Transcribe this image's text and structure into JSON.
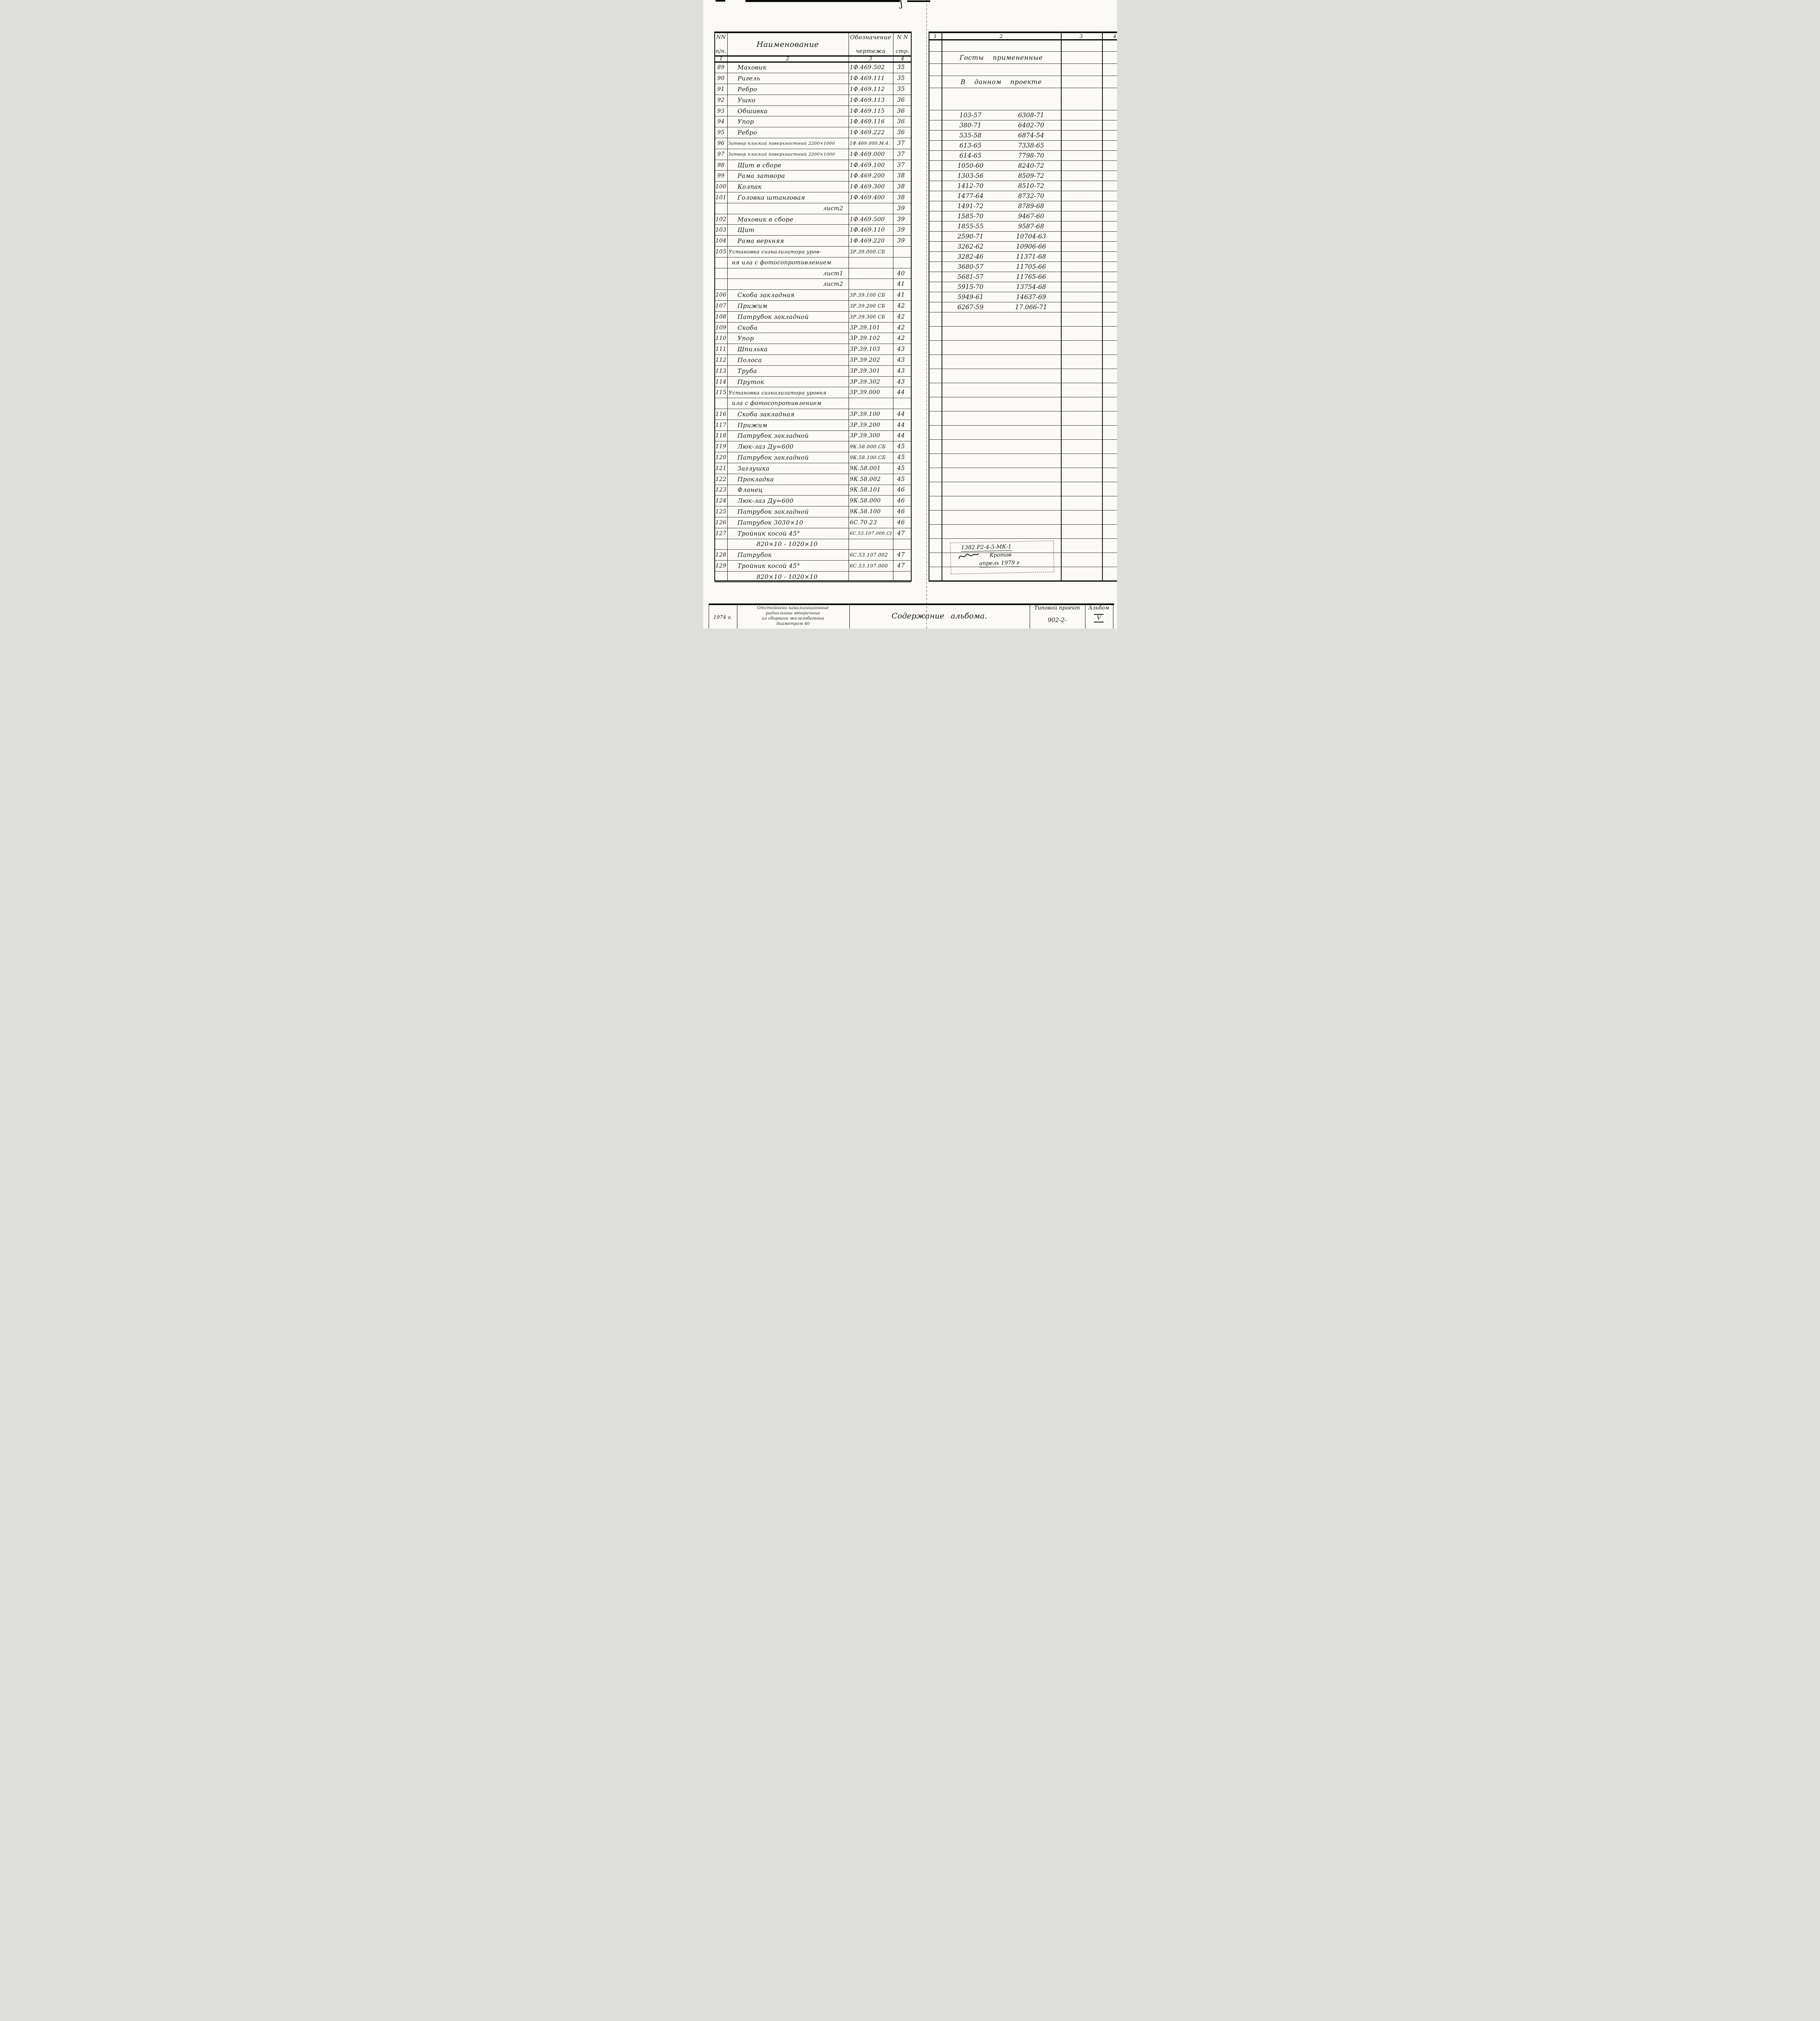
{
  "colors": {
    "ink": "#161616",
    "paper": "#fbfaf6"
  },
  "left_table": {
    "header": {
      "col1_top": "NN",
      "col1_bottom": "п/п.",
      "col2": "Наименование",
      "col3_top": "Обозначение",
      "col3_bottom": "чертежа",
      "col4_top": "N N",
      "col4_bottom": "стр."
    },
    "subheader": [
      "1",
      "2",
      "3",
      "4"
    ],
    "rows": [
      {
        "n": "89",
        "name": "Маховик",
        "code": "1Ф.469.502",
        "page": "35"
      },
      {
        "n": "90",
        "name": "Ригель",
        "code": "1Ф.469.111",
        "page": "35"
      },
      {
        "n": "91",
        "name": "Ребро",
        "code": "1Ф.469.112",
        "page": "35"
      },
      {
        "n": "92",
        "name": "Ушко",
        "code": "1Ф.469.113",
        "page": "36"
      },
      {
        "n": "93",
        "name": "Обшивка",
        "code": "1Ф.469.115",
        "page": "36"
      },
      {
        "n": "94",
        "name": "Упор",
        "code": "1Ф.469.116",
        "page": "36"
      },
      {
        "n": "95",
        "name": "Ребро",
        "code": "1Ф.469.222",
        "page": "36"
      },
      {
        "n": "96",
        "name": "Затвор плоский поверхностный 2200×1000",
        "code": "1Ф.469.000.М.4.",
        "page": "37"
      },
      {
        "n": "97",
        "name": "Затвор плоский поверхностный 2200×1000",
        "code": "1Ф.469.000",
        "page": "37"
      },
      {
        "n": "98",
        "name": "Щит в сборе",
        "code": "1Ф.469.100",
        "page": "37"
      },
      {
        "n": "99",
        "name": "Рама затвора",
        "code": "1Ф.469.200",
        "page": "38"
      },
      {
        "n": "100",
        "name": "Колпак",
        "code": "1Ф.469.300",
        "page": "38"
      },
      {
        "n": "101",
        "name": "Головка штанговая",
        "code": "1Ф.469.400",
        "page": "38"
      },
      {
        "n": "",
        "name": "лист2",
        "code": "",
        "page": "39",
        "type": "sheet"
      },
      {
        "n": "102",
        "name": "Маховик в сборе",
        "code": "1Ф.469.500",
        "page": "39"
      },
      {
        "n": "103",
        "name": "Щит",
        "code": "1Ф.469.110",
        "page": "39"
      },
      {
        "n": "104",
        "name": "Рама верхняя",
        "code": "1Ф.469.220",
        "page": "39"
      },
      {
        "n": "105",
        "name": "Установка сигнализатора уров-",
        "code": "3Р.39.000.СБ",
        "page": ""
      },
      {
        "n": "",
        "name": "ня ила с фотосопротивлением",
        "code": "",
        "page": "",
        "type": "cont"
      },
      {
        "n": "",
        "name": "лист1",
        "code": "",
        "page": "40",
        "type": "sheet"
      },
      {
        "n": "",
        "name": "лист2",
        "code": "",
        "page": "41",
        "type": "sheet"
      },
      {
        "n": "106",
        "name": "Скоба закладная",
        "code": "3Р.39.100 СБ",
        "page": "41"
      },
      {
        "n": "107",
        "name": "Прижим",
        "code": "3Р.39.200 СБ",
        "page": "42"
      },
      {
        "n": "108",
        "name": "Патрубок закладной",
        "code": "3Р.39.300 СБ",
        "page": "42"
      },
      {
        "n": "109",
        "name": "Скоба",
        "code": "3Р.39.101",
        "page": "42"
      },
      {
        "n": "110",
        "name": "Упор",
        "code": "3Р.39.102",
        "page": "42"
      },
      {
        "n": "111",
        "name": "Шпилька",
        "code": "3Р.39.103",
        "page": "43"
      },
      {
        "n": "112",
        "name": "Полоса",
        "code": "3Р.39.202",
        "page": "43"
      },
      {
        "n": "113",
        "name": "Труба",
        "code": "3Р.39.301",
        "page": "43"
      },
      {
        "n": "114",
        "name": "Пруток",
        "code": "3Р.39.302",
        "page": "43"
      },
      {
        "n": "115",
        "name": "Установка сигнализатора уровня",
        "code": "3Р.39.000",
        "page": "44"
      },
      {
        "n": "",
        "name": "ила с фотосопротивлением",
        "code": "",
        "page": "",
        "type": "cont"
      },
      {
        "n": "116",
        "name": "Скоба закладная",
        "code": "3Р.39.100",
        "page": "44"
      },
      {
        "n": "117",
        "name": "Прижим",
        "code": "3Р.39.200",
        "page": "44"
      },
      {
        "n": "118",
        "name": "Патрубок закладной",
        "code": "3Р.39.300",
        "page": "44"
      },
      {
        "n": "119",
        "name": "Люк-лаз Ду=600",
        "code": "9К.58.000.СБ",
        "page": "45"
      },
      {
        "n": "120",
        "name": "Патрубок закладной",
        "code": "9К.58.100.СБ",
        "page": "45"
      },
      {
        "n": "121",
        "name": "Заглушка",
        "code": "9К.58.001",
        "page": "45"
      },
      {
        "n": "122",
        "name": "Прокладка",
        "code": "9К.58.002",
        "page": "45"
      },
      {
        "n": "123",
        "name": "Фланец",
        "code": "9К.58.101",
        "page": "46"
      },
      {
        "n": "124",
        "name": "Люк-лаз Ду=600",
        "code": "9К.58.000",
        "page": "46"
      },
      {
        "n": "125",
        "name": "Патрубок закладной",
        "code": "9К.58.100",
        "page": "46"
      },
      {
        "n": "126",
        "name": "Патрубок 3030×10",
        "code": "6С.70.23",
        "page": "46"
      },
      {
        "n": "127",
        "name": "Тройник косой 45°",
        "code": "6С.53.107.000.СБ",
        "page": "47"
      },
      {
        "n": "",
        "name": "820×10 - 1020×10",
        "code": "",
        "page": "",
        "type": "center"
      },
      {
        "n": "128",
        "name": "Патрубок",
        "code": "6С.53.107.002",
        "page": "47"
      },
      {
        "n": "129",
        "name": "Тройник косой 45°",
        "code": "6С.53.107.000",
        "page": "47"
      },
      {
        "n": "",
        "name": "820×10 - 1020×10",
        "code": "",
        "page": "",
        "type": "center"
      }
    ]
  },
  "right_table": {
    "col_numbers": [
      "1",
      "2",
      "3",
      "4"
    ],
    "pre_rows": [
      "",
      "Госты примененные",
      "",
      "В данном проекте",
      ""
    ],
    "gosts": [
      [
        "103-57",
        "6308-71"
      ],
      [
        "380-71",
        "6402-70"
      ],
      [
        "535-58",
        "6874-54"
      ],
      [
        "613-65",
        "7338-65"
      ],
      [
        "614-65",
        "7798-70"
      ],
      [
        "1050-60",
        "8240-72"
      ],
      [
        "1303-56",
        "8509-72"
      ],
      [
        "1412-70",
        "8510-72"
      ],
      [
        "1477-64",
        "8732-70"
      ],
      [
        "1491-72",
        "8789-68"
      ],
      [
        "1585-70",
        "9467-60"
      ],
      [
        "1855-55",
        "9587-68"
      ],
      [
        "2590-71",
        "10704-63"
      ],
      [
        "3262-62",
        "10906-66"
      ],
      [
        "3282-46",
        "11371-68"
      ],
      [
        "3680-57",
        "11705-66"
      ],
      [
        "5681-57",
        "11765-66"
      ],
      [
        "5915-70",
        "13754-68"
      ],
      [
        "5949-61",
        "14637-69"
      ],
      [
        "6267-59",
        "17.066-71"
      ]
    ],
    "empty_rows": 19
  },
  "stamp": {
    "line1": "1382.Р2-4-5-МК-1",
    "signature_name": "Кротов",
    "line3": "апрель 1979 г"
  },
  "title_block": {
    "year": "1974 г.",
    "object_lines": [
      "Отстойники канализационные",
      "радиальные вторичные",
      "из сборного железобетона",
      "диаметром 40"
    ],
    "sheet_title": "Содержание альбома.",
    "project_label": "Типовой проект",
    "project_number": "902-2-",
    "album_label": "Альбом",
    "album_number": "V"
  }
}
